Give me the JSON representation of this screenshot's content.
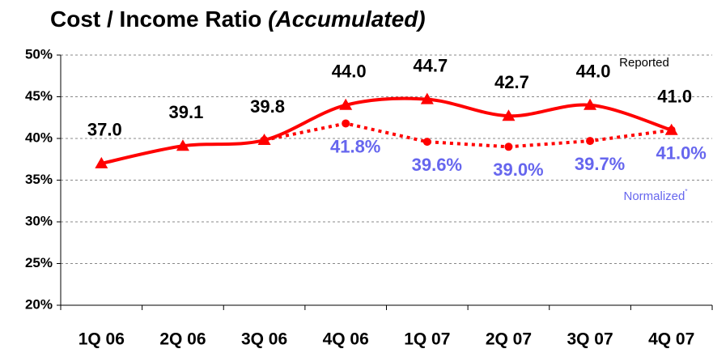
{
  "chart_data": {
    "type": "line",
    "title": "Cost / Income  Ratio",
    "title_emphasis": "(Accumulated)",
    "categories": [
      "1Q 06",
      "2Q 06",
      "3Q 06",
      "4Q 06",
      "1Q 07",
      "2Q 07",
      "3Q 07",
      "4Q 07"
    ],
    "series": [
      {
        "name": "Reported",
        "color": "#ff0000",
        "line": "solid",
        "marker": "triangle",
        "label_color": "#000000",
        "values": [
          37.0,
          39.1,
          39.8,
          44.0,
          44.7,
          42.7,
          44.0,
          41.0
        ],
        "value_labels": [
          "37.0",
          "39.1",
          "39.8",
          "44.0",
          "44.7",
          "42.7",
          "44.0",
          "41.0"
        ]
      },
      {
        "name": "Normalized",
        "name_mark": "*",
        "color": "#ff0000",
        "line": "dotted",
        "marker": "circle",
        "label_color": "#6666ee",
        "values": [
          null,
          null,
          39.8,
          41.8,
          39.6,
          39.0,
          39.7,
          41.0
        ],
        "value_labels": [
          null,
          null,
          null,
          "41.8%",
          "39.6%",
          "39.0%",
          "39.7%",
          "41.0%"
        ]
      }
    ],
    "ylim": [
      20,
      50
    ],
    "yticks": [
      {
        "value": 20,
        "label": "20%"
      },
      {
        "value": 25,
        "label": "25%"
      },
      {
        "value": 30,
        "label": "30%"
      },
      {
        "value": 35,
        "label": "35%"
      },
      {
        "value": 40,
        "label": "40%"
      },
      {
        "value": 45,
        "label": "45%"
      },
      {
        "value": 50,
        "label": "50%"
      }
    ],
    "grid": true
  }
}
